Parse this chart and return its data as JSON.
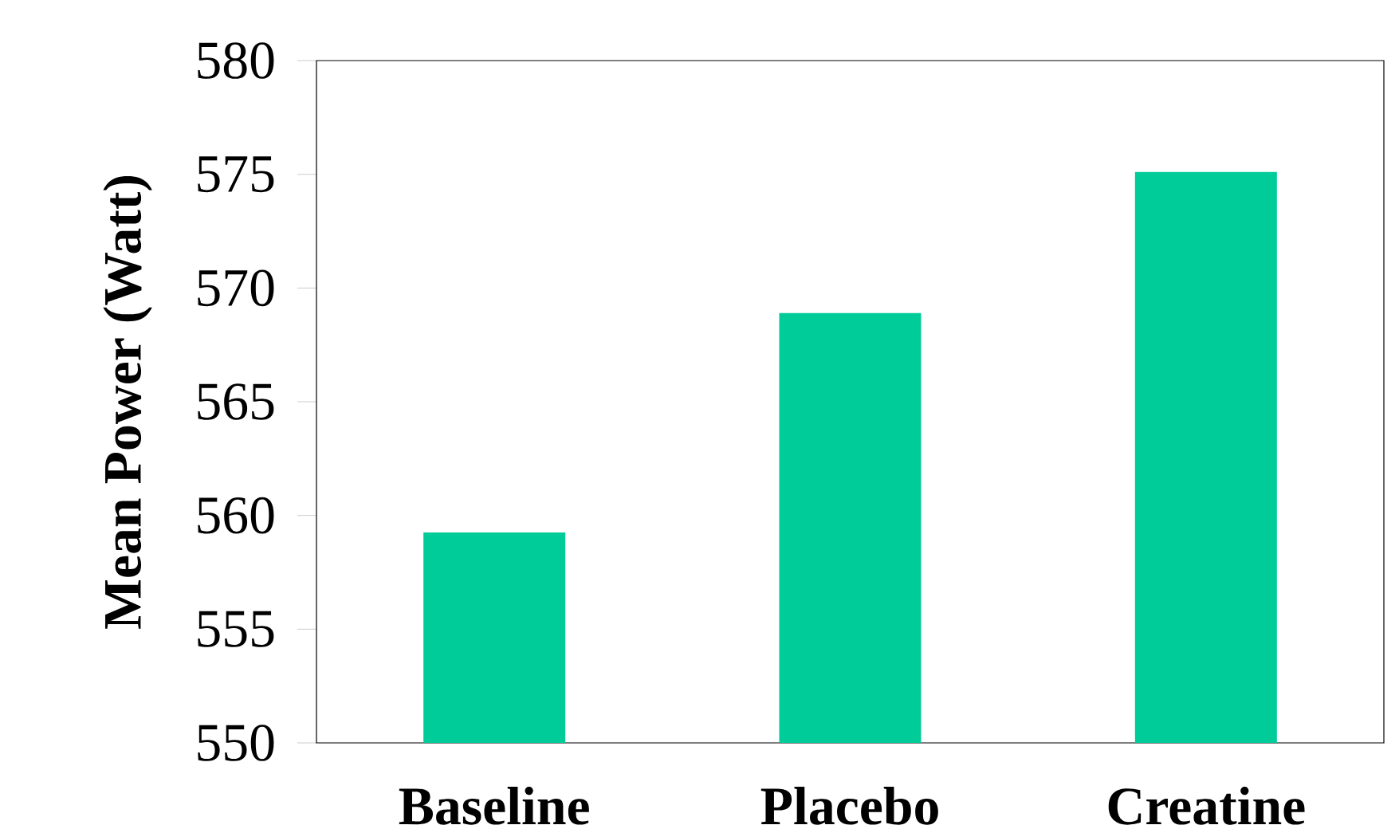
{
  "chart_data": {
    "type": "bar",
    "ylabel": "Mean Power (Watt)",
    "categories": [
      "Baseline",
      "Placebo",
      "Creatine"
    ],
    "values": [
      559.25,
      568.9,
      575.1
    ],
    "color": "#00cc99",
    "ylim": [
      550,
      580
    ],
    "yticks": [
      550,
      555,
      560,
      565,
      570,
      575,
      580
    ],
    "grid": false
  }
}
